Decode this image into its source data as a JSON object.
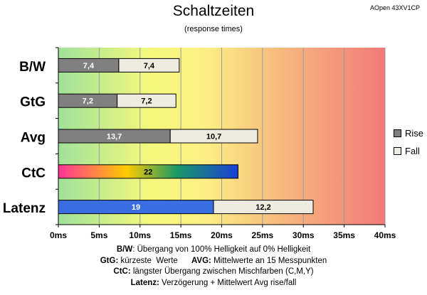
{
  "title": "Schaltzeiten",
  "subtitle": "(response times)",
  "model": "AOpen 43XV1CP",
  "colors": {
    "rise": "#808080",
    "fall": "#eeece1",
    "latenz_rise": "#3a6de0",
    "grid": "#9a9a9a",
    "ctc_gradient": [
      "#ff3399",
      "#ffcc00",
      "#1a9966",
      "#1a3fd6"
    ]
  },
  "legend": [
    {
      "label": "Rise",
      "color": "#808080"
    },
    {
      "label": "Fall",
      "color": "#eeece1"
    }
  ],
  "notes": [
    {
      "bold": "B/W",
      "text": ":  Übergang von 100% Helligkeit auf 0% Helligkeit"
    },
    {
      "bold": "GtG:",
      "text": " kürzeste  Werte      ",
      "bold2": "AVG:",
      "text2": " Mittelwerte  an 15 Messpunkten"
    },
    {
      "bold": "CtC:",
      "text": " längster Übergang  zwischen Mischfarben  (C,M,Y)"
    },
    {
      "bold": "Latenz:",
      "text": " Verzögerung  + Mittelwert  Avg rise/fall"
    }
  ],
  "chart_data": {
    "type": "bar",
    "orientation": "horizontal",
    "stacked": true,
    "categories": [
      "B/W",
      "GtG",
      "Avg",
      "CtC",
      "Latenz"
    ],
    "series": [
      {
        "name": "Rise",
        "values": [
          7.4,
          7.2,
          13.7,
          22,
          19
        ]
      },
      {
        "name": "Fall",
        "values": [
          7.4,
          7.2,
          10.7,
          null,
          12.2
        ]
      }
    ],
    "labels": {
      "rise": [
        "7,4",
        "7,2",
        "13,7",
        "22",
        "19"
      ],
      "fall": [
        "7,4",
        "7,2",
        "10,7",
        "",
        "12,2"
      ]
    },
    "x_ticks": [
      "0ms",
      "5ms",
      "10ms",
      "15ms",
      "20ms",
      "25ms",
      "30ms",
      "35ms",
      "40ms"
    ],
    "xlim": [
      0,
      40
    ],
    "grid": true,
    "legend_position": "right",
    "background": "gradient green-yellow-red"
  }
}
